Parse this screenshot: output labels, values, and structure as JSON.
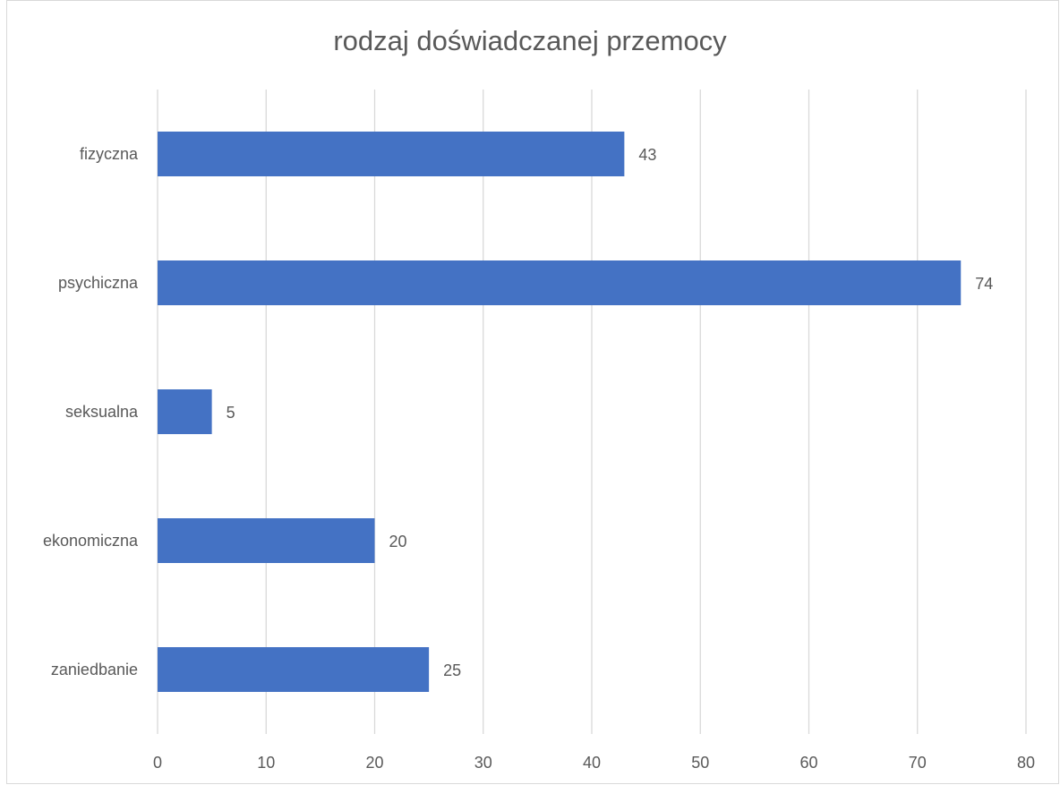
{
  "chart_data": {
    "type": "bar",
    "orientation": "horizontal",
    "title": "rodzaj doświadczanej przemocy",
    "categories": [
      "fizyczna",
      "psychiczna",
      "seksualna",
      "ekonomiczna",
      "zaniedbanie"
    ],
    "values": [
      43,
      74,
      5,
      20,
      25
    ],
    "xlim": [
      0,
      80
    ],
    "xticks": [
      0,
      10,
      20,
      30,
      40,
      50,
      60,
      70,
      80
    ],
    "grid": "vertical",
    "legend": "none",
    "data_labels": true,
    "bar_color": "#4472c4",
    "gridline_color": "#d9d9d9",
    "text_color": "#595959"
  }
}
